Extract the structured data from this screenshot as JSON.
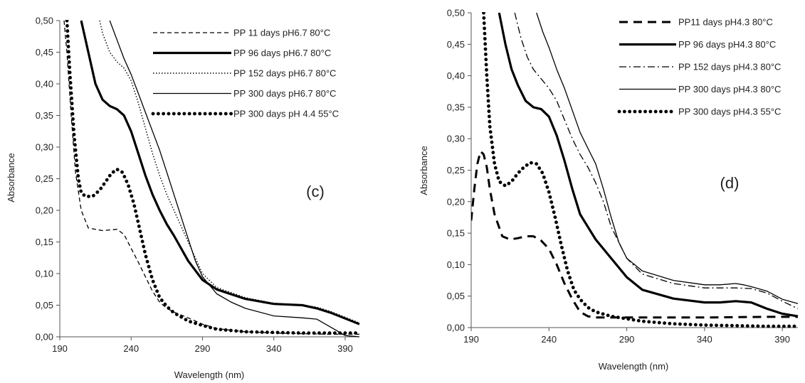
{
  "chart_data": [
    {
      "type": "line",
      "panel_label": "(c)",
      "xlabel": "Wavelength (nm)",
      "ylabel": "Absorbance",
      "xlim": [
        190,
        400
      ],
      "ylim": [
        0,
        0.5
      ],
      "xticks": [
        190,
        240,
        290,
        340,
        390
      ],
      "xtick_labels": [
        "190",
        "240",
        "290",
        "340",
        "390"
      ],
      "yticks": [
        0,
        0.05,
        0.1,
        0.15,
        0.2,
        0.25,
        0.3,
        0.35,
        0.4,
        0.45,
        0.5
      ],
      "ytick_labels": [
        "0,00",
        "0,05",
        "0,10",
        "0,15",
        "0,20",
        "0,25",
        "0,30",
        "0,35",
        "0,40",
        "0,45",
        "0,50"
      ],
      "grid": false,
      "legend_position": "top-right",
      "series": [
        {
          "name": "PP 11 days pH6.7 80°C",
          "style": "dashed",
          "x": [
            193,
            195,
            198,
            201,
            205,
            210,
            220,
            230,
            235,
            240,
            245,
            250,
            255,
            260,
            265,
            270,
            280,
            290,
            300,
            320,
            340,
            360,
            380,
            400
          ],
          "y": [
            0.5,
            0.45,
            0.35,
            0.26,
            0.2,
            0.172,
            0.168,
            0.17,
            0.162,
            0.14,
            0.118,
            0.095,
            0.072,
            0.055,
            0.045,
            0.039,
            0.03,
            0.02,
            0.013,
            0.008,
            0.006,
            0.005,
            0.004,
            0.004
          ]
        },
        {
          "name": "PP 96 days pH6.7 80°C",
          "style": "thick",
          "x": [
            205,
            210,
            215,
            220,
            225,
            230,
            235,
            240,
            245,
            250,
            255,
            260,
            265,
            270,
            275,
            280,
            290,
            300,
            320,
            340,
            360,
            370,
            380,
            400
          ],
          "y": [
            0.5,
            0.45,
            0.4,
            0.375,
            0.365,
            0.36,
            0.35,
            0.325,
            0.29,
            0.255,
            0.225,
            0.2,
            0.178,
            0.16,
            0.14,
            0.12,
            0.09,
            0.075,
            0.06,
            0.052,
            0.05,
            0.045,
            0.038,
            0.02
          ]
        },
        {
          "name": "PP 152 days pH6.7 80°C",
          "style": "dotted",
          "x": [
            218,
            220,
            225,
            230,
            235,
            240,
            245,
            250,
            255,
            260,
            265,
            270,
            280,
            290,
            300,
            320,
            340,
            360,
            370,
            380,
            400
          ],
          "y": [
            0.5,
            0.48,
            0.45,
            0.435,
            0.425,
            0.405,
            0.37,
            0.33,
            0.29,
            0.255,
            0.225,
            0.2,
            0.15,
            0.1,
            0.078,
            0.062,
            0.053,
            0.05,
            0.047,
            0.04,
            0.022
          ]
        },
        {
          "name": "PP 300 days pH6.7 80°C",
          "style": "solid",
          "x": [
            225,
            230,
            235,
            240,
            245,
            250,
            255,
            260,
            265,
            270,
            275,
            280,
            285,
            290,
            300,
            310,
            320,
            340,
            360,
            370,
            380,
            390,
            400
          ],
          "y": [
            0.5,
            0.47,
            0.44,
            0.415,
            0.385,
            0.355,
            0.325,
            0.295,
            0.26,
            0.225,
            0.19,
            0.155,
            0.12,
            0.095,
            0.068,
            0.055,
            0.045,
            0.033,
            0.03,
            0.028,
            0.015,
            0.002,
            0.0
          ]
        },
        {
          "name": "PP 300 days pH 4.4 55°C",
          "style": "round-dotted",
          "x": [
            195,
            197,
            200,
            203,
            205,
            208,
            213,
            218,
            222,
            226,
            230,
            234,
            238,
            242,
            246,
            250,
            255,
            260,
            265,
            270,
            280,
            290,
            300,
            320,
            340,
            360,
            380,
            400
          ],
          "y": [
            0.5,
            0.42,
            0.32,
            0.25,
            0.228,
            0.222,
            0.222,
            0.232,
            0.245,
            0.258,
            0.265,
            0.26,
            0.24,
            0.21,
            0.17,
            0.13,
            0.09,
            0.062,
            0.048,
            0.038,
            0.025,
            0.018,
            0.012,
            0.008,
            0.007,
            0.006,
            0.006,
            0.006
          ]
        }
      ]
    },
    {
      "type": "line",
      "panel_label": "(d)",
      "xlabel": "Wavelength (nm)",
      "ylabel": "Absorbance",
      "xlim": [
        190,
        400
      ],
      "ylim": [
        0,
        0.5
      ],
      "xticks": [
        190,
        240,
        290,
        340,
        390
      ],
      "xtick_labels": [
        "190",
        "240",
        "290",
        "340",
        "390"
      ],
      "yticks": [
        0,
        0.05,
        0.1,
        0.15,
        0.2,
        0.25,
        0.3,
        0.35,
        0.4,
        0.45,
        0.5
      ],
      "ytick_labels": [
        "0,00",
        "0,05",
        "0,10",
        "0,15",
        "0,20",
        "0,25",
        "0,30",
        "0,35",
        "0,40",
        "0,45",
        "0,50"
      ],
      "grid": false,
      "legend_position": "top-right",
      "series": [
        {
          "name": "PP11 days  pH4.3 80°C",
          "style": "long-dashed",
          "x": [
            190,
            192,
            194,
            196,
            198,
            200,
            202,
            205,
            210,
            215,
            220,
            225,
            230,
            235,
            240,
            245,
            250,
            255,
            260,
            265,
            270,
            280,
            290,
            300,
            340,
            380,
            400
          ],
          "y": [
            0.17,
            0.22,
            0.26,
            0.28,
            0.275,
            0.255,
            0.22,
            0.18,
            0.145,
            0.14,
            0.142,
            0.145,
            0.145,
            0.138,
            0.125,
            0.1,
            0.07,
            0.045,
            0.025,
            0.018,
            0.016,
            0.016,
            0.016,
            0.016,
            0.016,
            0.017,
            0.017
          ]
        },
        {
          "name": "PP  96 days  pH4.3 80°C",
          "style": "thick",
          "x": [
            208,
            212,
            216,
            220,
            225,
            230,
            235,
            240,
            245,
            250,
            255,
            260,
            265,
            270,
            280,
            290,
            300,
            320,
            340,
            350,
            360,
            370,
            380,
            390,
            400
          ],
          "y": [
            0.5,
            0.45,
            0.41,
            0.385,
            0.36,
            0.35,
            0.347,
            0.335,
            0.305,
            0.265,
            0.22,
            0.18,
            0.16,
            0.14,
            0.11,
            0.08,
            0.06,
            0.046,
            0.04,
            0.04,
            0.042,
            0.04,
            0.03,
            0.022,
            0.018
          ]
        },
        {
          "name": "PP 152 days  pH4.3 80°C",
          "style": "dash-dot",
          "x": [
            218,
            222,
            226,
            230,
            235,
            240,
            245,
            250,
            255,
            260,
            265,
            270,
            275,
            280,
            290,
            300,
            320,
            340,
            360,
            370,
            380,
            390,
            400
          ],
          "y": [
            0.5,
            0.46,
            0.43,
            0.41,
            0.395,
            0.38,
            0.36,
            0.33,
            0.3,
            0.275,
            0.255,
            0.23,
            0.2,
            0.16,
            0.11,
            0.085,
            0.07,
            0.063,
            0.063,
            0.062,
            0.055,
            0.042,
            0.03
          ]
        },
        {
          "name": "PP 300 days  pH4.3 80°C",
          "style": "solid",
          "x": [
            232,
            236,
            240,
            245,
            250,
            255,
            260,
            265,
            270,
            275,
            280,
            285,
            290,
            300,
            320,
            340,
            350,
            360,
            365,
            370,
            380,
            390,
            400
          ],
          "y": [
            0.5,
            0.47,
            0.445,
            0.41,
            0.38,
            0.345,
            0.31,
            0.285,
            0.26,
            0.22,
            0.175,
            0.135,
            0.11,
            0.09,
            0.075,
            0.068,
            0.068,
            0.07,
            0.068,
            0.065,
            0.058,
            0.045,
            0.038
          ]
        },
        {
          "name": "PP 300 days pH4.3 55°C",
          "style": "round-dotted",
          "x": [
            198,
            200,
            202,
            205,
            208,
            212,
            216,
            220,
            224,
            228,
            232,
            236,
            240,
            244,
            248,
            252,
            256,
            260,
            265,
            270,
            280,
            290,
            300,
            320,
            340,
            360,
            380,
            400
          ],
          "y": [
            0.5,
            0.4,
            0.32,
            0.26,
            0.232,
            0.225,
            0.232,
            0.245,
            0.255,
            0.262,
            0.26,
            0.245,
            0.215,
            0.175,
            0.13,
            0.09,
            0.06,
            0.045,
            0.032,
            0.025,
            0.018,
            0.014,
            0.01,
            0.006,
            0.004,
            0.003,
            0.002,
            0.002
          ]
        }
      ]
    }
  ]
}
